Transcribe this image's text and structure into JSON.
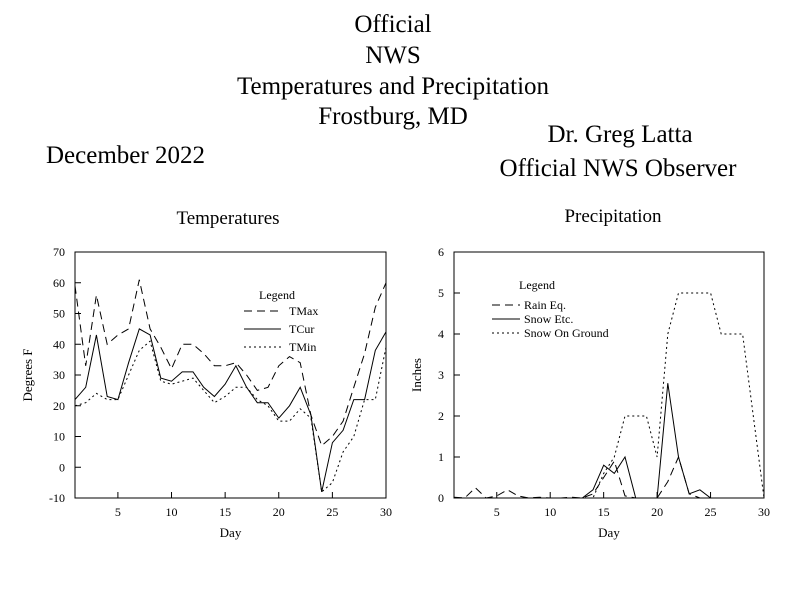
{
  "header": {
    "title_lines": [
      "Official",
      "NWS",
      "Temperatures and Precipitation",
      "Frostburg, MD"
    ],
    "observer_name": "Dr. Greg Latta",
    "observer_role": "Official NWS Observer",
    "period": "December 2022"
  },
  "chart_data": [
    {
      "type": "line",
      "title": "Temperatures",
      "xlabel": "Day",
      "ylabel": "Degrees F",
      "xlim": [
        1,
        30
      ],
      "ylim": [
        -10,
        70
      ],
      "xticks": [
        5,
        10,
        15,
        20,
        25,
        30
      ],
      "yticks": [
        -10,
        0,
        10,
        20,
        30,
        40,
        50,
        60,
        70
      ],
      "grid": false,
      "legend": {
        "title": "Legend",
        "placement": "top-right"
      },
      "x": [
        1,
        2,
        3,
        4,
        5,
        6,
        7,
        8,
        9,
        10,
        11,
        12,
        13,
        14,
        15,
        16,
        17,
        18,
        19,
        20,
        21,
        22,
        23,
        24,
        25,
        26,
        27,
        28,
        29,
        30
      ],
      "series": [
        {
          "name": "TMax",
          "dash": "8,5",
          "values": [
            59,
            33,
            56,
            40,
            43,
            45,
            61,
            45,
            39,
            32,
            40,
            40,
            37,
            33,
            33,
            34,
            30,
            25,
            26,
            33,
            36,
            34,
            17,
            7,
            10,
            15,
            26,
            37,
            52,
            60
          ]
        },
        {
          "name": "TCur",
          "dash": "",
          "values": [
            22,
            26,
            43,
            23,
            22,
            34,
            45,
            43,
            29,
            28,
            31,
            31,
            26,
            23,
            27,
            33,
            26,
            21,
            21,
            16,
            20,
            26,
            17,
            -8,
            8,
            12,
            22,
            22,
            38,
            44
          ]
        },
        {
          "name": "TMin",
          "dash": "2,3",
          "values": [
            20,
            21,
            24,
            22,
            22,
            30,
            38,
            41,
            28,
            27,
            28,
            29,
            25,
            21,
            23,
            26,
            26,
            22,
            20,
            15,
            15,
            19,
            16,
            -8,
            -5,
            5,
            10,
            22,
            22,
            39
          ]
        }
      ]
    },
    {
      "type": "line",
      "title": "Precipitation",
      "xlabel": "Day",
      "ylabel": "Inches",
      "xlim": [
        1,
        30
      ],
      "ylim": [
        0,
        6
      ],
      "xticks": [
        5,
        10,
        15,
        20,
        25,
        30
      ],
      "yticks": [
        0,
        1,
        2,
        3,
        4,
        5,
        6
      ],
      "grid": false,
      "legend": {
        "title": "Legend",
        "placement": "top-left"
      },
      "x": [
        1,
        2,
        3,
        4,
        5,
        6,
        7,
        8,
        9,
        10,
        11,
        12,
        13,
        14,
        15,
        16,
        17,
        18,
        19,
        20,
        21,
        22,
        23,
        24,
        25,
        26,
        27,
        28,
        29,
        30
      ],
      "series": [
        {
          "name": "Rain Eq.",
          "dash": "8,5",
          "values": [
            0.02,
            0.0,
            0.25,
            0.0,
            0.05,
            0.2,
            0.05,
            0.0,
            0.02,
            0.0,
            0.0,
            0.02,
            0.0,
            0.1,
            0.5,
            0.9,
            0.05,
            0.0,
            0.0,
            0.0,
            0.4,
            1.0,
            0.1,
            0.0,
            0.0,
            0.0,
            0.0,
            0.0,
            0.0,
            0.0
          ]
        },
        {
          "name": "Snow Etc.",
          "dash": "",
          "values": [
            0,
            0,
            0,
            0,
            0,
            0,
            0,
            0,
            0,
            0,
            0,
            0,
            0,
            0.2,
            0.8,
            0.6,
            1.0,
            0.0,
            0.0,
            0.0,
            2.8,
            1.0,
            0.1,
            0.2,
            0.0,
            0,
            0,
            0,
            0,
            0
          ]
        },
        {
          "name": "Snow On Ground",
          "dash": "2,3",
          "values": [
            0,
            0,
            0,
            0,
            0,
            0,
            0,
            0,
            0,
            0,
            0,
            0,
            0,
            0,
            0.6,
            1.0,
            2.0,
            2.0,
            2.0,
            1.0,
            4.0,
            5.0,
            5.0,
            5.0,
            5.0,
            4.0,
            4.0,
            4.0,
            2.0,
            0.0
          ]
        }
      ]
    }
  ]
}
